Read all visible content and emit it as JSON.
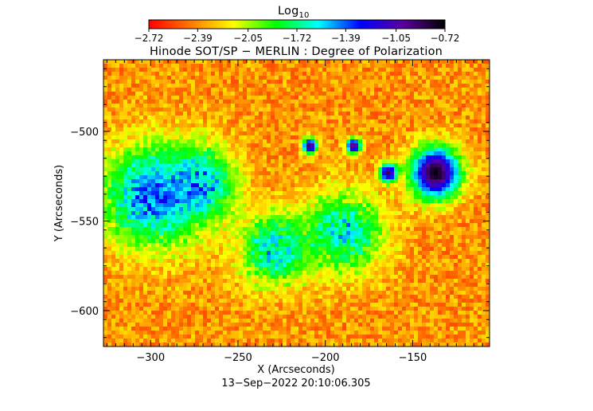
{
  "chart_data": {
    "type": "heatmap",
    "title": "Hinode SOT/SP − MERLIN : Degree of Polarization",
    "xlabel": "X (Arcseconds)",
    "ylabel": "Y (Arcseconds)",
    "timestamp": "13−Sep−2022 20:10:06.305",
    "xlim": [
      -327,
      -106
    ],
    "ylim": [
      -620,
      -460
    ],
    "x_ticks": [
      -300,
      -250,
      -200,
      -150
    ],
    "x_tick_labels": [
      "−300",
      "−250",
      "−200",
      "−150"
    ],
    "y_ticks": [
      -500,
      -550,
      -600
    ],
    "y_tick_labels": [
      "−500",
      "−550",
      "−600"
    ],
    "colorbar": {
      "label_base": "Log",
      "label_sub": "10",
      "colormap": [
        "#ff0000",
        "#ff7a00",
        "#ffff00",
        "#00ff00",
        "#00ffff",
        "#0000ff",
        "#5a00a0",
        "#000000"
      ],
      "ticks": [
        -2.72,
        -2.39,
        -2.05,
        -1.72,
        -1.39,
        -1.05,
        -0.72
      ],
      "tick_labels": [
        "−2.72",
        "−2.39",
        "−2.05",
        "−1.72",
        "−1.39",
        "−1.05",
        "−0.72"
      ],
      "range": [
        -2.72,
        -0.72
      ]
    },
    "features": [
      {
        "name": "sunspot",
        "x": -138,
        "y": -522,
        "radius": 10,
        "value": -0.75
      },
      {
        "name": "pore",
        "x": -165,
        "y": -522,
        "radius": 3.5,
        "value": -0.85
      },
      {
        "name": "pore",
        "x": -210,
        "y": -507,
        "radius": 3,
        "value": -0.9
      },
      {
        "name": "pore",
        "x": -185,
        "y": -507,
        "radius": 3,
        "value": -0.9
      },
      {
        "name": "plage",
        "x": -300,
        "y": -535,
        "radius": 20,
        "value": -1.2
      },
      {
        "name": "plage",
        "x": -272,
        "y": -528,
        "radius": 14,
        "value": -1.35
      },
      {
        "name": "plage",
        "x": -230,
        "y": -565,
        "radius": 14,
        "value": -1.4
      },
      {
        "name": "plage",
        "x": -190,
        "y": -555,
        "radius": 16,
        "value": -1.45
      }
    ]
  }
}
